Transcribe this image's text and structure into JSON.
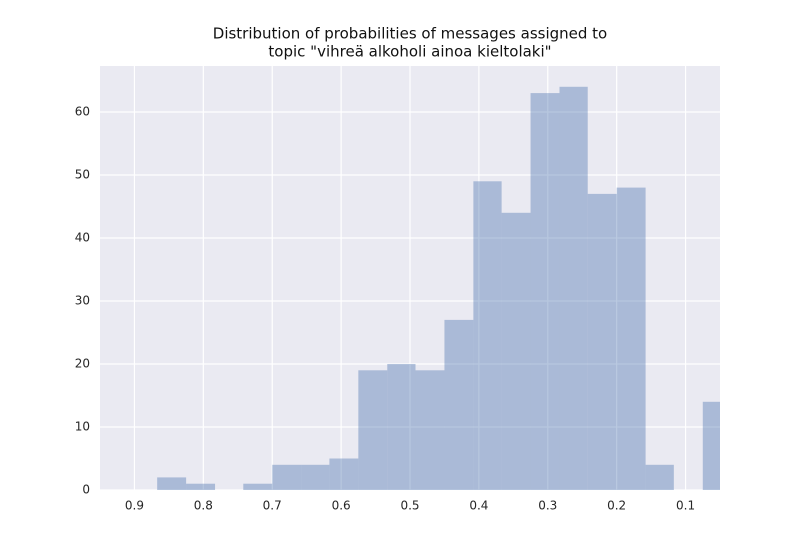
{
  "chart_data": {
    "type": "histogram",
    "title": [
      "Distribution of probabilities of messages assigned to",
      "topic \"vihreä alkoholi ainoa kieltolaki\""
    ],
    "bins": [
      0.033,
      0.075,
      0.117,
      0.158,
      0.2,
      0.242,
      0.283,
      0.325,
      0.367,
      0.408,
      0.45,
      0.492,
      0.533,
      0.575,
      0.617,
      0.658,
      0.7,
      0.742,
      0.783,
      0.825,
      0.867
    ],
    "values": [
      14,
      0,
      4,
      48,
      47,
      64,
      63,
      44,
      49,
      27,
      19,
      20,
      19,
      5,
      4,
      4,
      1,
      0,
      1,
      2
    ],
    "color": "#4c72b0",
    "opacity": 0.4,
    "xlim": [
      0.95,
      0.05
    ],
    "xticks": [
      0.9,
      0.8,
      0.7,
      0.6,
      0.5,
      0.4,
      0.3,
      0.2,
      0.1
    ],
    "ylim": [
      0,
      67.3
    ],
    "yticks": [
      0,
      10,
      20,
      30,
      40,
      50,
      60
    ],
    "grid": true
  }
}
